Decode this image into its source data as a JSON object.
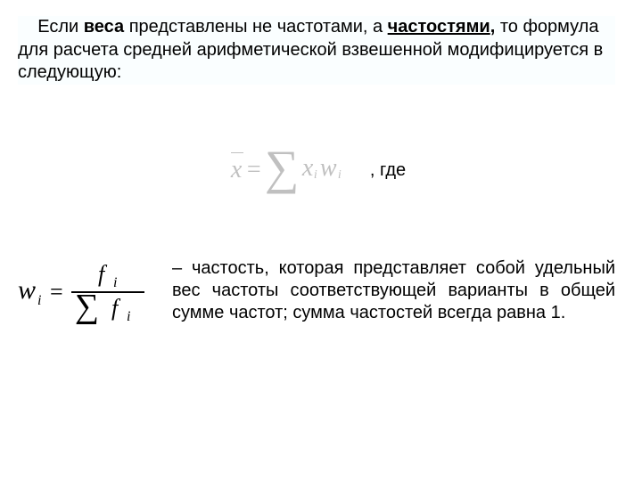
{
  "intro": {
    "indent": "    ",
    "pre": "Если ",
    "bold1": "веса",
    "mid": " представлены не частотами, а ",
    "bold2": "частостями",
    "comma": ",",
    "post": " то формула для расчета средней арифметической взвешенной модифицируется в следующую:"
  },
  "gde_label": ", где",
  "definition": {
    "text": "– частость, которая представляет собой удельный вес частоты соответствующей варианты в общей сумме частот; сумма частостей всегда равна 1."
  },
  "formula1": {
    "xbar": "x",
    "eq": "=",
    "sigma": "∑",
    "x": "x",
    "w": "w",
    "i": "i",
    "color": "#c0c0c0"
  },
  "formula2": {
    "w": "w",
    "i": "i",
    "eq": "=",
    "f": "f",
    "sigma": "∑",
    "color": "#000000"
  },
  "colors": {
    "text": "#000000",
    "muted": "#c0c0c0",
    "highlight_bg": "#fafeff"
  }
}
